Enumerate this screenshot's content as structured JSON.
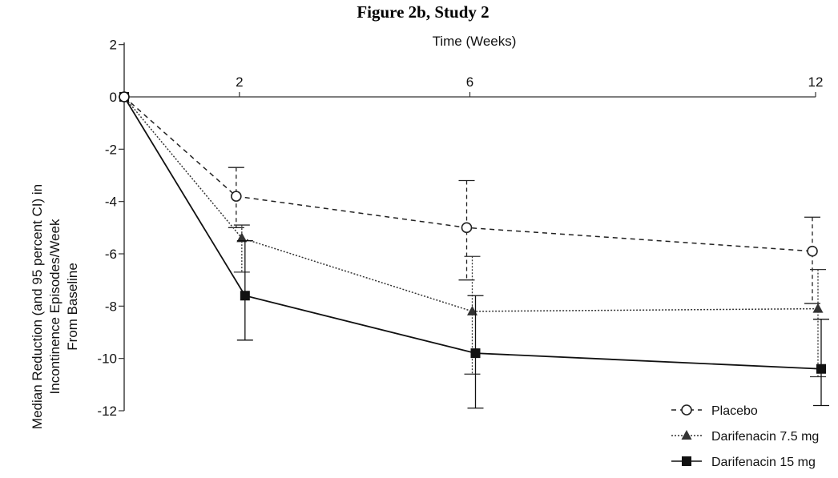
{
  "chart_data": {
    "type": "line",
    "title": "Figure 2b, Study 2",
    "xlabel": "Time (Weeks)",
    "ylabel": "Median Reduction (and 95 percent CI) in Incontinence Episodes/Week From Baseline",
    "ylabel_lines": [
      "Median Reduction (and 95 percent CI) in",
      "Incontinence Episodes/Week",
      "From Baseline"
    ],
    "x_ticks": [
      2,
      6,
      12
    ],
    "y_ticks": [
      2,
      0,
      -2,
      -4,
      -6,
      -8,
      -10,
      -12
    ],
    "xlim": [
      0,
      12
    ],
    "ylim": [
      -12,
      2
    ],
    "grid": false,
    "legend_position": "bottom-right",
    "series": [
      {
        "name": "Placebo",
        "marker": "open-circle",
        "line_style": "dashed",
        "color": "#222222",
        "x": [
          0,
          2,
          6,
          12
        ],
        "y": [
          0,
          -3.8,
          -5.0,
          -5.9
        ],
        "ci_low": [
          null,
          -5.0,
          -7.0,
          -7.9
        ],
        "ci_high": [
          null,
          -2.7,
          -3.2,
          -4.6
        ]
      },
      {
        "name": "Darifenacin 7.5 mg",
        "marker": "filled-triangle",
        "line_style": "dotted",
        "color": "#333333",
        "x": [
          0,
          2,
          6,
          12
        ],
        "y": [
          0,
          -5.4,
          -8.2,
          -8.1
        ],
        "ci_low": [
          null,
          -6.7,
          -10.6,
          -10.7
        ],
        "ci_high": [
          null,
          -4.9,
          -6.1,
          -6.6
        ]
      },
      {
        "name": "Darifenacin 15 mg",
        "marker": "filled-square",
        "line_style": "solid",
        "color": "#111111",
        "x": [
          0,
          2,
          6,
          12
        ],
        "y": [
          0,
          -7.6,
          -9.8,
          -10.4
        ],
        "ci_low": [
          null,
          -9.3,
          -11.9,
          -11.8
        ],
        "ci_high": [
          null,
          -5.5,
          -7.6,
          -8.5
        ]
      }
    ]
  }
}
